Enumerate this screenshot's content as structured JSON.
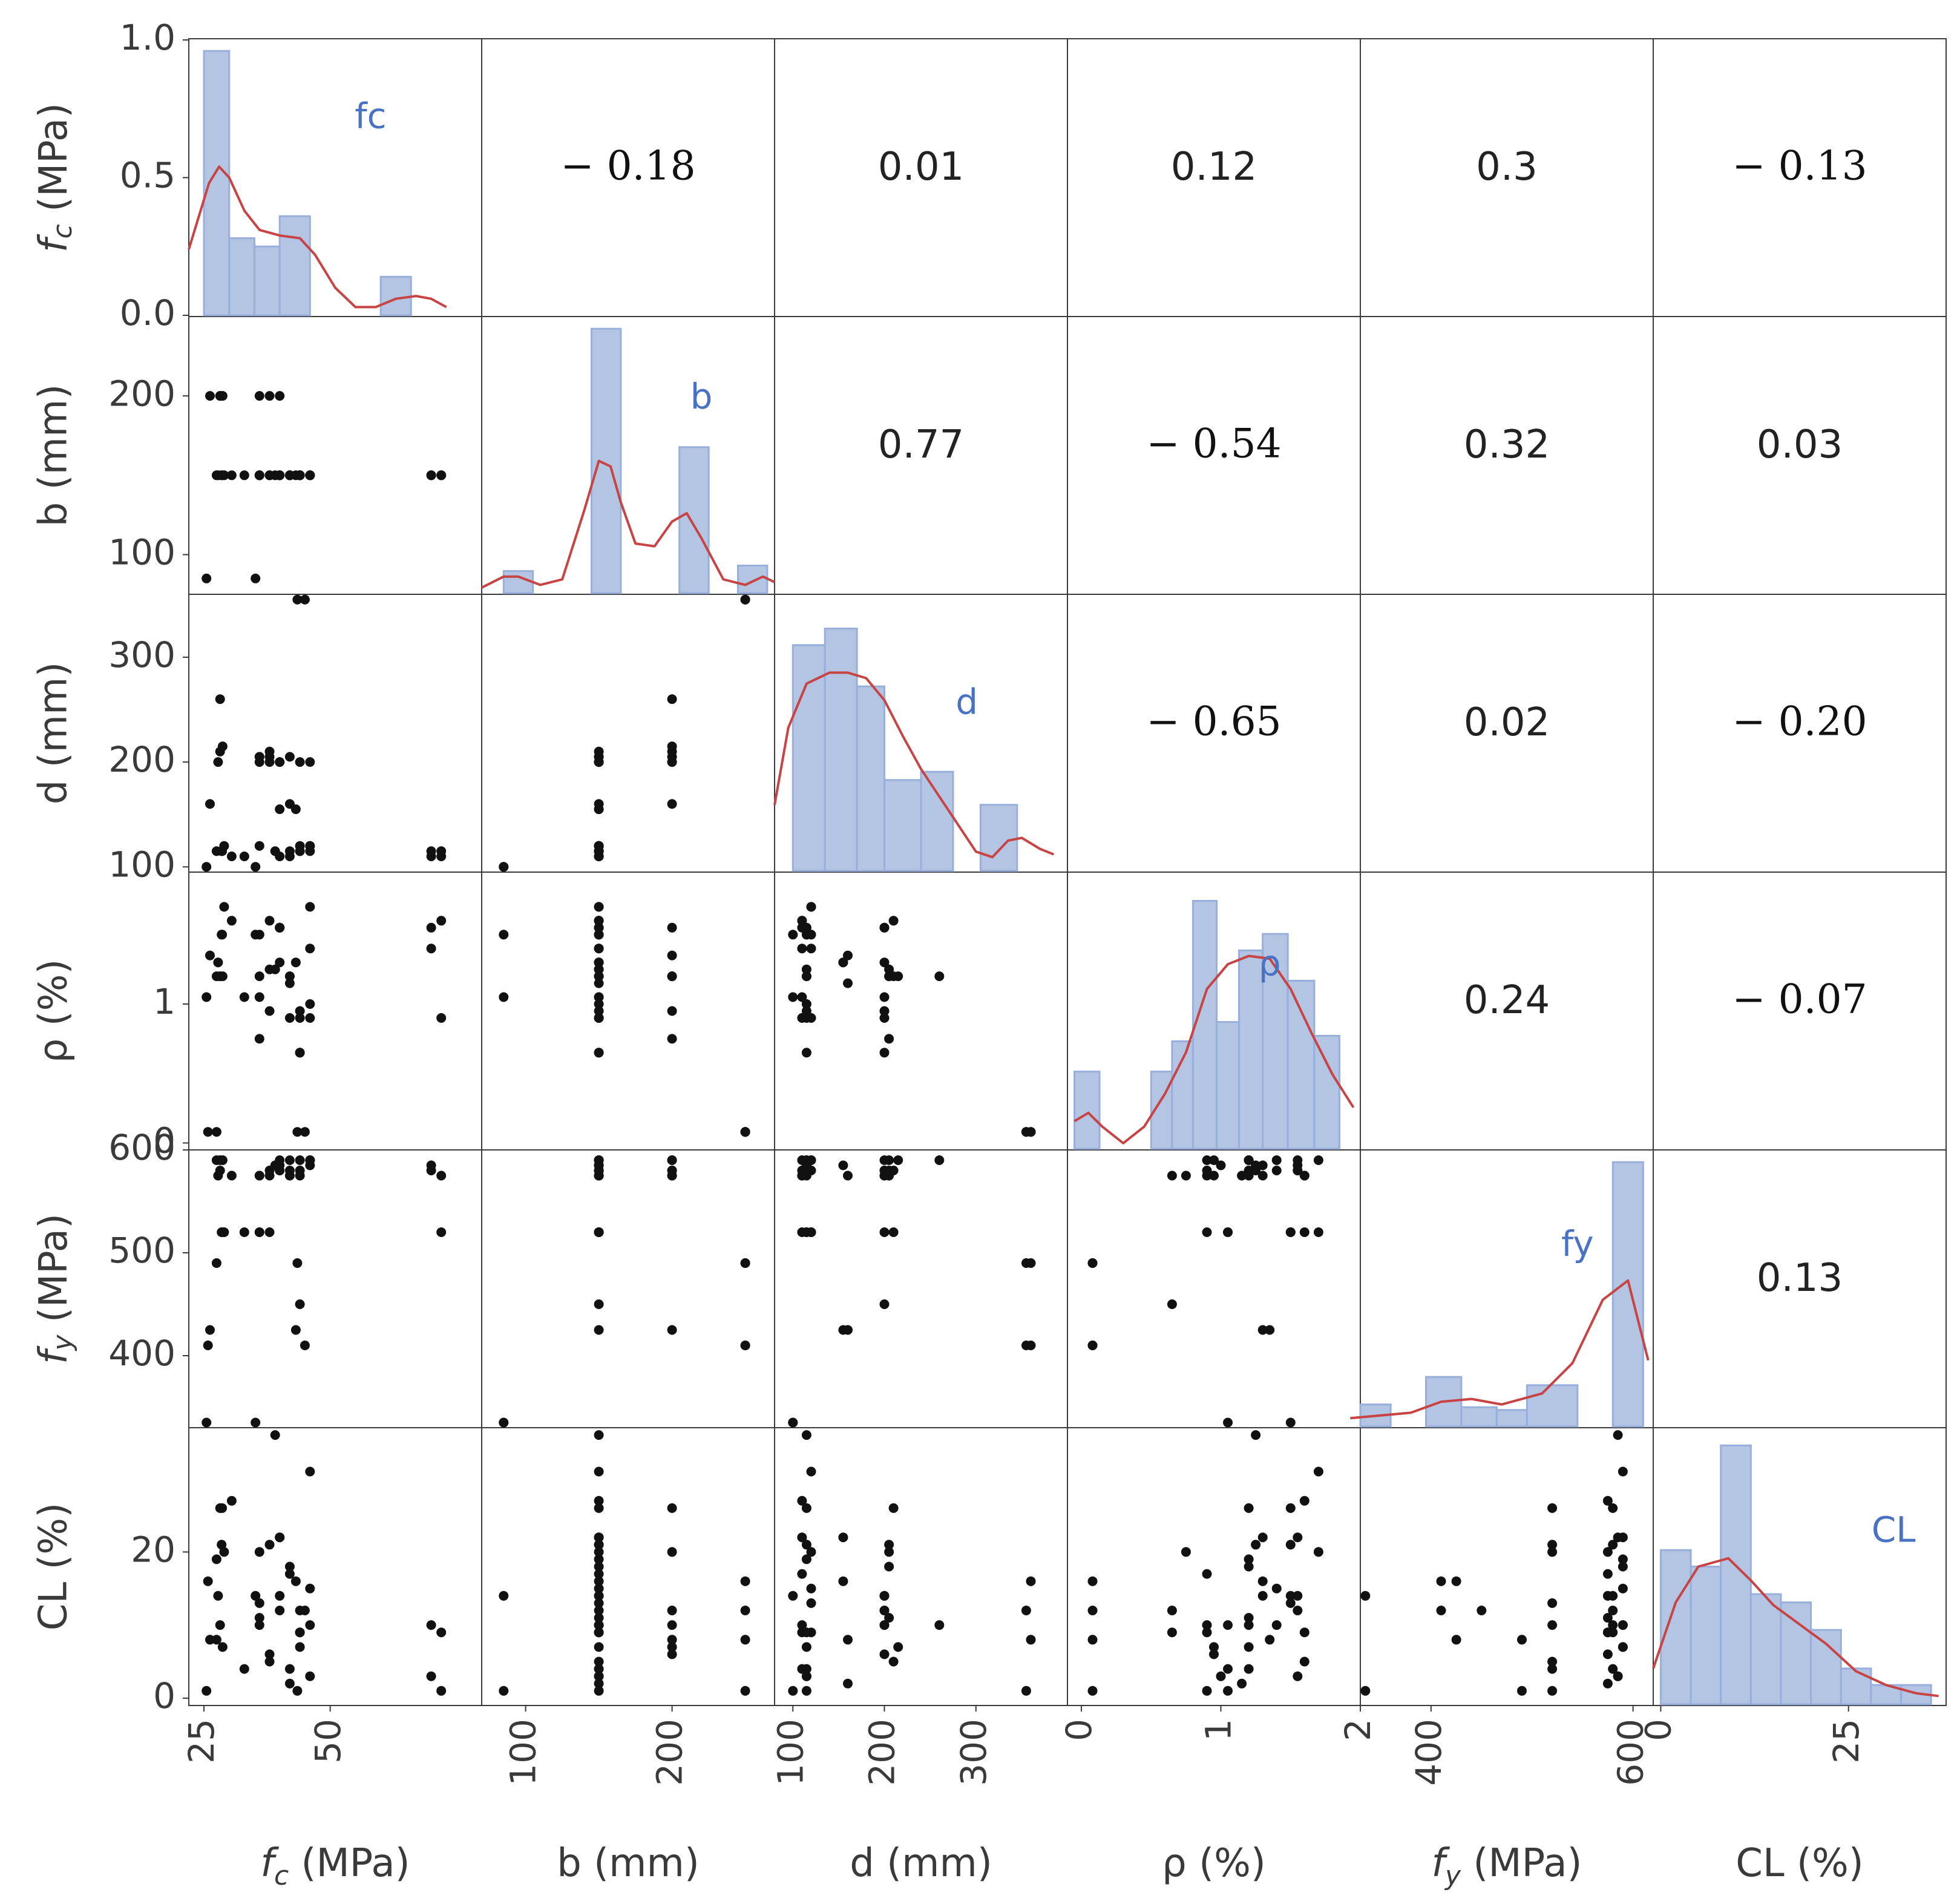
{
  "chart_data": {
    "type": "pairplot",
    "variables": [
      {
        "key": "fc",
        "label": "f_c (MPa)",
        "diag_label": "f_c",
        "domain": [
          22,
          80
        ],
        "range": [
          0,
          1.0
        ],
        "ticks": [
          25,
          50
        ],
        "diag_ticks": [
          0.0,
          0.5,
          1.0
        ],
        "diag_tick_labels": [
          "0.0",
          "0.5",
          "1.0"
        ]
      },
      {
        "key": "b",
        "label": "b (mm)",
        "diag_label": "b",
        "domain": [
          70,
          270
        ],
        "range": [
          75,
          250
        ],
        "ticks": [
          100,
          200
        ]
      },
      {
        "key": "d",
        "label": "d (mm)",
        "diag_label": "d",
        "domain": [
          80,
          400
        ],
        "range": [
          95,
          360
        ],
        "ticks": [
          100,
          200,
          300
        ]
      },
      {
        "key": "rho",
        "label": "ρ (%)",
        "diag_label": "ρ",
        "domain": [
          -0.1,
          2.0
        ],
        "range": [
          -0.05,
          1.95
        ],
        "ticks": [
          0,
          1,
          2
        ],
        "y_ticks": [
          0,
          1
        ]
      },
      {
        "key": "fy",
        "label": "f_y (MPa)",
        "diag_label": "f_y",
        "domain": [
          330,
          620
        ],
        "range": [
          330,
          600
        ],
        "ticks": [
          400,
          500,
          600
        ],
        "x_ticks": [
          400,
          600
        ]
      },
      {
        "key": "cl",
        "label": "CL (%)",
        "diag_label": "CL",
        "domain": [
          -1,
          38
        ],
        "range": [
          -1,
          37
        ],
        "ticks": [
          0,
          20
        ],
        "x_ticks": [
          0,
          25
        ]
      }
    ],
    "correlations": [
      {
        "row": 0,
        "col": 1,
        "text": "− 0.18",
        "style": "serif"
      },
      {
        "row": 0,
        "col": 2,
        "text": "0.01",
        "style": "sans"
      },
      {
        "row": 0,
        "col": 3,
        "text": "0.12",
        "style": "sans"
      },
      {
        "row": 0,
        "col": 4,
        "text": "0.3",
        "style": "sans"
      },
      {
        "row": 0,
        "col": 5,
        "text": "− 0.13",
        "style": "serif"
      },
      {
        "row": 1,
        "col": 2,
        "text": "0.77",
        "style": "sans"
      },
      {
        "row": 1,
        "col": 3,
        "text": "− 0.54",
        "style": "serif"
      },
      {
        "row": 1,
        "col": 4,
        "text": "0.32",
        "style": "sans"
      },
      {
        "row": 1,
        "col": 5,
        "text": "0.03",
        "style": "sans"
      },
      {
        "row": 2,
        "col": 3,
        "text": "− 0.65",
        "style": "serif"
      },
      {
        "row": 2,
        "col": 4,
        "text": "0.02",
        "style": "sans"
      },
      {
        "row": 2,
        "col": 5,
        "text": "− 0.20",
        "style": "serif"
      },
      {
        "row": 3,
        "col": 4,
        "text": "0.24",
        "style": "sans"
      },
      {
        "row": 3,
        "col": 5,
        "text": "− 0.07",
        "style": "serif"
      },
      {
        "row": 4,
        "col": 5,
        "text": "0.13",
        "style": "sans"
      }
    ],
    "histograms": [
      {
        "var": "fc",
        "bins": [
          [
            25,
            30,
            0.96
          ],
          [
            30,
            35,
            0.28
          ],
          [
            35,
            40,
            0.25
          ],
          [
            40,
            46,
            0.36
          ],
          [
            60,
            66,
            0.14
          ]
        ],
        "kde": [
          [
            22,
            0.24
          ],
          [
            26,
            0.48
          ],
          [
            28,
            0.54
          ],
          [
            30,
            0.5
          ],
          [
            33,
            0.38
          ],
          [
            36,
            0.31
          ],
          [
            40,
            0.29
          ],
          [
            44,
            0.28
          ],
          [
            47,
            0.22
          ],
          [
            51,
            0.1
          ],
          [
            55,
            0.03
          ],
          [
            59,
            0.03
          ],
          [
            63,
            0.06
          ],
          [
            67,
            0.07
          ],
          [
            70,
            0.06
          ],
          [
            73,
            0.03
          ]
        ],
        "label_pos": [
          58,
          0.68
        ]
      },
      {
        "var": "b",
        "bins": [
          [
            85,
            105,
            0.08
          ],
          [
            145,
            165,
            0.96
          ],
          [
            205,
            225,
            0.53
          ],
          [
            245,
            265,
            0.1
          ]
        ],
        "kde": [
          [
            70,
            0.02
          ],
          [
            85,
            0.06
          ],
          [
            95,
            0.06
          ],
          [
            110,
            0.03
          ],
          [
            125,
            0.05
          ],
          [
            140,
            0.3
          ],
          [
            150,
            0.48
          ],
          [
            158,
            0.46
          ],
          [
            165,
            0.33
          ],
          [
            175,
            0.18
          ],
          [
            188,
            0.17
          ],
          [
            200,
            0.26
          ],
          [
            210,
            0.29
          ],
          [
            220,
            0.2
          ],
          [
            235,
            0.05
          ],
          [
            250,
            0.03
          ],
          [
            262,
            0.06
          ],
          [
            270,
            0.04
          ]
        ],
        "label_pos": [
          220,
          0.67
        ]
      },
      {
        "var": "d",
        "bins": [
          [
            100,
            135,
            0.82
          ],
          [
            135,
            170,
            0.88
          ],
          [
            170,
            200,
            0.67
          ],
          [
            200,
            240,
            0.33
          ],
          [
            240,
            275,
            0.36
          ],
          [
            305,
            345,
            0.24
          ]
        ],
        "kde": [
          [
            80,
            0.24
          ],
          [
            95,
            0.52
          ],
          [
            115,
            0.68
          ],
          [
            140,
            0.72
          ],
          [
            160,
            0.72
          ],
          [
            180,
            0.7
          ],
          [
            200,
            0.62
          ],
          [
            220,
            0.49
          ],
          [
            240,
            0.37
          ],
          [
            260,
            0.27
          ],
          [
            280,
            0.17
          ],
          [
            300,
            0.07
          ],
          [
            318,
            0.05
          ],
          [
            335,
            0.11
          ],
          [
            350,
            0.12
          ],
          [
            370,
            0.08
          ],
          [
            385,
            0.06
          ]
        ],
        "label_pos": [
          290,
          0.57
        ]
      },
      {
        "var": "rho",
        "bins": [
          [
            -0.05,
            0.13,
            0.28
          ],
          [
            0.5,
            0.65,
            0.28
          ],
          [
            0.65,
            0.8,
            0.39
          ],
          [
            0.8,
            0.97,
            0.9
          ],
          [
            0.97,
            1.13,
            0.46
          ],
          [
            1.13,
            1.3,
            0.72
          ],
          [
            1.3,
            1.48,
            0.78
          ],
          [
            1.48,
            1.67,
            0.61
          ],
          [
            1.67,
            1.85,
            0.41
          ]
        ],
        "kde": [
          [
            -0.05,
            0.1
          ],
          [
            0.05,
            0.13
          ],
          [
            0.15,
            0.08
          ],
          [
            0.3,
            0.02
          ],
          [
            0.45,
            0.08
          ],
          [
            0.6,
            0.2
          ],
          [
            0.75,
            0.35
          ],
          [
            0.9,
            0.58
          ],
          [
            1.05,
            0.67
          ],
          [
            1.2,
            0.7
          ],
          [
            1.35,
            0.69
          ],
          [
            1.5,
            0.58
          ],
          [
            1.65,
            0.42
          ],
          [
            1.8,
            0.27
          ],
          [
            1.95,
            0.15
          ]
        ],
        "label_pos": [
          1.35,
          0.63
        ]
      },
      {
        "var": "fy",
        "bins": [
          [
            330,
            360,
            0.08
          ],
          [
            395,
            430,
            0.18
          ],
          [
            430,
            465,
            0.07
          ],
          [
            465,
            495,
            0.06
          ],
          [
            495,
            545,
            0.15
          ],
          [
            580,
            610,
            0.96
          ]
        ],
        "kde": [
          [
            320,
            0.03
          ],
          [
            350,
            0.04
          ],
          [
            380,
            0.05
          ],
          [
            410,
            0.09
          ],
          [
            440,
            0.1
          ],
          [
            470,
            0.08
          ],
          [
            510,
            0.12
          ],
          [
            540,
            0.23
          ],
          [
            570,
            0.46
          ],
          [
            595,
            0.53
          ],
          [
            615,
            0.24
          ]
        ],
        "label_pos": [
          545,
          0.62
        ]
      },
      {
        "var": "cl",
        "bins": [
          [
            0,
            4,
            0.56
          ],
          [
            4,
            8,
            0.5
          ],
          [
            8,
            12,
            0.94
          ],
          [
            12,
            16,
            0.4
          ],
          [
            16,
            20,
            0.37
          ],
          [
            20,
            24,
            0.27
          ],
          [
            24,
            28,
            0.13
          ],
          [
            28,
            32,
            0.07
          ],
          [
            32,
            36,
            0.07
          ]
        ],
        "kde": [
          [
            -1,
            0.13
          ],
          [
            2,
            0.37
          ],
          [
            5,
            0.5
          ],
          [
            9,
            0.53
          ],
          [
            12,
            0.45
          ],
          [
            15,
            0.36
          ],
          [
            18,
            0.3
          ],
          [
            22,
            0.22
          ],
          [
            26,
            0.12
          ],
          [
            30,
            0.07
          ],
          [
            34,
            0.04
          ],
          [
            37,
            0.03
          ]
        ],
        "label_pos": [
          31,
          0.59
        ]
      }
    ],
    "samples": {
      "fc": [
        25.5,
        25.8,
        26.2,
        28.5,
        30.5,
        27.5,
        27.8,
        28.2,
        28.6,
        29.0,
        36,
        38,
        40,
        42,
        44,
        46,
        36,
        38,
        40,
        42,
        44,
        46,
        36,
        38,
        40,
        42,
        44,
        46,
        42,
        40,
        33,
        36,
        70,
        72,
        70,
        72,
        43.5,
        44,
        46,
        28.2,
        28.7,
        45,
        43.2,
        27.5,
        35.2,
        39.1
      ],
      "b": [
        85,
        250,
        200,
        150,
        150,
        150,
        150,
        200,
        150,
        150,
        150,
        150,
        200,
        150,
        150,
        150,
        150,
        150,
        150,
        150,
        150,
        150,
        150,
        200,
        150,
        150,
        150,
        150,
        150,
        150,
        150,
        200,
        150,
        150,
        150,
        150,
        250,
        150,
        150,
        200,
        200,
        250,
        150,
        250,
        85,
        150
      ],
      "d": [
        100,
        360,
        160,
        115,
        110,
        115,
        200,
        260,
        115,
        120,
        200,
        210,
        200,
        110,
        115,
        115,
        205,
        205,
        110,
        115,
        120,
        120,
        120,
        200,
        155,
        160,
        200,
        200,
        205,
        200,
        110,
        205,
        110,
        110,
        115,
        115,
        355,
        115,
        120,
        210,
        215,
        355,
        155,
        360,
        100,
        115
      ],
      "rho": [
        1.05,
        0.08,
        1.35,
        1.5,
        1.6,
        1.2,
        1.3,
        1.2,
        1.5,
        1.7,
        1.05,
        1.6,
        1.55,
        0.9,
        0.95,
        1.0,
        1.2,
        1.25,
        1.55,
        1.2,
        0.9,
        1.4,
        1.5,
        0.95,
        1.3,
        1.15,
        0.65,
        0.9,
        1.2,
        1.55,
        1.05,
        0.75,
        1.4,
        1.6,
        1.55,
        0.9,
        0.08,
        0.65,
        1.7,
        1.2,
        1.2,
        0.08,
        1.3,
        0.08,
        1.5,
        1.25
      ],
      "fy": [
        335,
        410,
        425,
        520,
        575,
        590,
        575,
        590,
        520,
        520,
        520,
        520,
        580,
        575,
        590,
        585,
        575,
        580,
        590,
        580,
        580,
        590,
        520,
        575,
        585,
        575,
        450,
        590,
        590,
        580,
        520,
        575,
        580,
        575,
        585,
        520,
        490,
        575,
        590,
        580,
        590,
        410,
        425,
        490,
        335,
        585
      ],
      "cl": [
        1,
        16,
        8,
        21,
        27,
        19,
        14,
        10,
        26,
        20,
        10,
        5,
        12,
        17,
        7,
        3,
        11,
        21,
        22,
        4,
        9,
        15,
        13,
        6,
        22,
        2,
        12,
        10,
        18,
        14,
        4,
        20,
        10,
        9,
        3,
        1,
        1,
        9,
        31,
        26,
        7,
        12,
        16,
        8,
        14,
        36
      ]
    }
  }
}
